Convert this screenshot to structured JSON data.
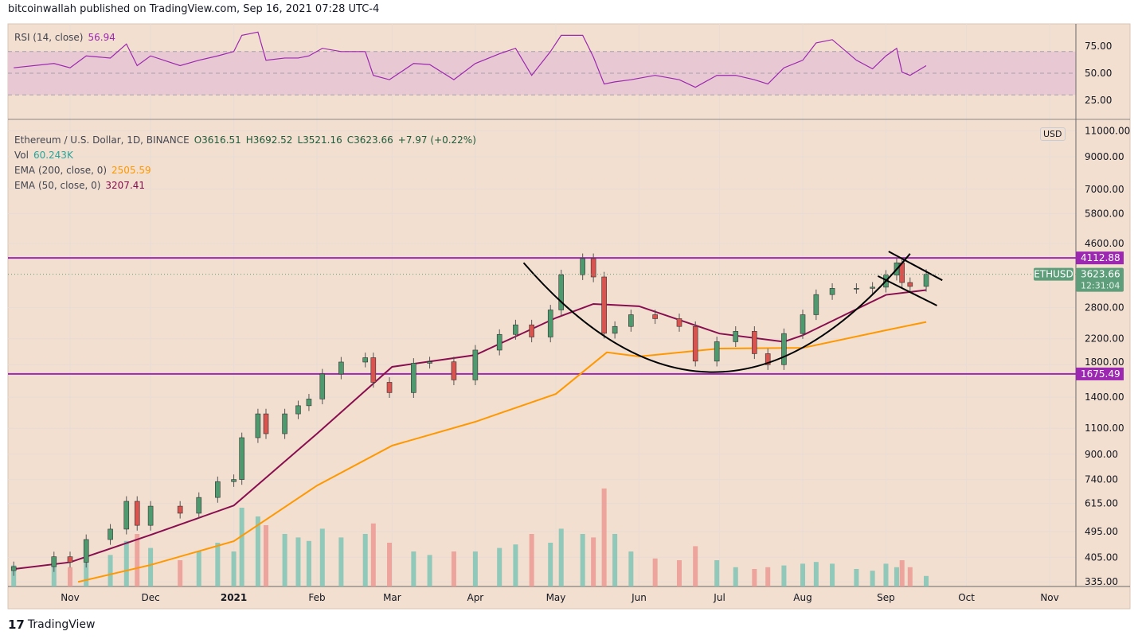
{
  "header": {
    "published": "bitcoinwallah published on TradingView.com, Sep 16, 2021 07:28 UTC-4"
  },
  "rsi_legend": {
    "label": "RSI (14, close)",
    "value": "56.94"
  },
  "legend": {
    "symbol": "Ethereum / U.S. Dollar, 1D, BINANCE",
    "open": "O3616.51",
    "high": "H3692.52",
    "low": "L3521.16",
    "close": "C3623.66",
    "change": "+7.97 (+0.22%)",
    "vol_label": "Vol",
    "vol_value": "60.243K",
    "ema200_label": "EMA (200, close, 0)",
    "ema200_value": "2505.59",
    "ema50_label": "EMA (50, close, 0)",
    "ema50_value": "3207.41"
  },
  "currency": "USD",
  "footer": {
    "brand": "TradingView"
  },
  "colors": {
    "background": "#f2dfcf",
    "up": "#4e9a6e",
    "down": "#d9534f",
    "ema200": "#ff9800",
    "ema50": "#880e4f",
    "hline": "#9c27b0",
    "rsi": "#9c27b0",
    "last_price": "#5f9e7b"
  },
  "chart_data": {
    "type": "candlestick",
    "yscale": "log",
    "ylim": [
      320,
      11500
    ],
    "y_ticks": [
      "11000.00",
      "9000.00",
      "7000.00",
      "5800.00",
      "4600.00",
      "2800.00",
      "2200.00",
      "1800.00",
      "1400.00",
      "1100.00",
      "900.00",
      "740.00",
      "615.00",
      "495.00",
      "405.00",
      "335.00"
    ],
    "x_ticks": [
      {
        "label": "Nov",
        "date": "2020-11-01"
      },
      {
        "label": "Dec",
        "date": "2020-12-01"
      },
      {
        "label": "2021",
        "date": "2021-01-01"
      },
      {
        "label": "Feb",
        "date": "2021-02-01"
      },
      {
        "label": "Mar",
        "date": "2021-03-01"
      },
      {
        "label": "Apr",
        "date": "2021-04-01"
      },
      {
        "label": "May",
        "date": "2021-05-01"
      },
      {
        "label": "Jun",
        "date": "2021-06-01"
      },
      {
        "label": "Jul",
        "date": "2021-07-01"
      },
      {
        "label": "Aug",
        "date": "2021-08-01"
      },
      {
        "label": "Sep",
        "date": "2021-09-01"
      },
      {
        "label": "Oct",
        "date": "2021-10-01"
      },
      {
        "label": "Nov",
        "date": "2021-11-01"
      }
    ],
    "xlim": [
      "2020-10-08",
      "2021-11-10"
    ],
    "series": [
      [
        "2020-10-11",
        377,
        120,
        55
      ],
      [
        "2020-10-26",
        407,
        130,
        59
      ],
      [
        "2020-11-01",
        390,
        110,
        55
      ],
      [
        "2020-11-07",
        465,
        200,
        66
      ],
      [
        "2020-11-16",
        504,
        180,
        64
      ],
      [
        "2020-11-22",
        625,
        260,
        77
      ],
      [
        "2020-11-26",
        519,
        300,
        57
      ],
      [
        "2020-12-01",
        602,
        220,
        66
      ],
      [
        "2020-12-12",
        570,
        150,
        57
      ],
      [
        "2020-12-19",
        644,
        200,
        62
      ],
      [
        "2020-12-26",
        728,
        250,
        66
      ],
      [
        "2021-01-01",
        740,
        200,
        70
      ],
      [
        "2021-01-04",
        1023,
        450,
        85
      ],
      [
        "2021-01-10",
        1230,
        400,
        88
      ],
      [
        "2021-01-13",
        1055,
        350,
        62
      ],
      [
        "2021-01-20",
        1230,
        300,
        64
      ],
      [
        "2021-01-25",
        1310,
        280,
        64
      ],
      [
        "2021-01-29",
        1380,
        260,
        66
      ],
      [
        "2021-02-03",
        1675,
        330,
        73
      ],
      [
        "2021-02-10",
        1837,
        280,
        70
      ],
      [
        "2021-02-19",
        1900,
        300,
        70
      ],
      [
        "2021-02-22",
        1570,
        360,
        48
      ],
      [
        "2021-02-28",
        1450,
        250,
        44
      ],
      [
        "2021-03-09",
        1820,
        200,
        59
      ],
      [
        "2021-03-15",
        1840,
        180,
        58
      ],
      [
        "2021-03-24",
        1600,
        200,
        44
      ],
      [
        "2021-04-01",
        2015,
        200,
        59
      ],
      [
        "2021-04-10",
        2275,
        220,
        68
      ],
      [
        "2021-04-16",
        2450,
        240,
        73
      ],
      [
        "2021-04-22",
        2230,
        300,
        48
      ],
      [
        "2021-04-29",
        2750,
        250,
        70
      ],
      [
        "2021-05-03",
        3610,
        330,
        85
      ],
      [
        "2021-05-11",
        4093,
        300,
        85
      ],
      [
        "2021-05-15",
        3550,
        280,
        65
      ],
      [
        "2021-05-19",
        2295,
        560,
        40
      ],
      [
        "2021-05-23",
        2420,
        300,
        42
      ],
      [
        "2021-05-29",
        2650,
        200,
        44
      ],
      [
        "2021-06-07",
        2570,
        160,
        48
      ],
      [
        "2021-06-16",
        2420,
        150,
        44
      ],
      [
        "2021-06-22",
        1850,
        230,
        37
      ],
      [
        "2021-06-30",
        2150,
        150,
        48
      ],
      [
        "2021-07-07",
        2330,
        110,
        48
      ],
      [
        "2021-07-14",
        1960,
        100,
        44
      ],
      [
        "2021-07-19",
        1800,
        110,
        40
      ],
      [
        "2021-07-25",
        2290,
        120,
        55
      ],
      [
        "2021-08-01",
        2650,
        130,
        62
      ],
      [
        "2021-08-06",
        3097,
        140,
        78
      ],
      [
        "2021-08-12",
        3250,
        130,
        81
      ],
      [
        "2021-08-21",
        3250,
        100,
        62
      ],
      [
        "2021-08-27",
        3280,
        90,
        54
      ],
      [
        "2021-09-01",
        3600,
        130,
        66
      ],
      [
        "2021-09-05",
        3960,
        110,
        73
      ],
      [
        "2021-09-07",
        3400,
        150,
        51
      ],
      [
        "2021-09-10",
        3300,
        110,
        48
      ],
      [
        "2021-09-16",
        3624,
        60,
        57
      ]
    ],
    "series_fields": [
      "date",
      "close",
      "volume_k",
      "rsi"
    ],
    "ema200": [
      [
        "2020-11-04",
        335
      ],
      [
        "2020-12-01",
        382
      ],
      [
        "2021-01-01",
        459
      ],
      [
        "2021-02-01",
        706
      ],
      [
        "2021-03-01",
        962
      ],
      [
        "2021-04-01",
        1157
      ],
      [
        "2021-05-01",
        1435
      ],
      [
        "2021-05-20",
        1980
      ],
      [
        "2021-06-01",
        1918
      ],
      [
        "2021-07-01",
        2040
      ],
      [
        "2021-08-01",
        2050
      ],
      [
        "2021-09-01",
        2350
      ],
      [
        "2021-09-16",
        2505.59
      ]
    ],
    "ema50": [
      [
        "2020-10-11",
        370
      ],
      [
        "2020-11-01",
        390
      ],
      [
        "2020-12-01",
        482
      ],
      [
        "2021-01-01",
        605
      ],
      [
        "2021-02-01",
        1055
      ],
      [
        "2021-03-01",
        1770
      ],
      [
        "2021-04-01",
        1940
      ],
      [
        "2021-05-01",
        2585
      ],
      [
        "2021-05-15",
        2880
      ],
      [
        "2021-06-01",
        2830
      ],
      [
        "2021-07-01",
        2290
      ],
      [
        "2021-07-25",
        2150
      ],
      [
        "2021-08-01",
        2260
      ],
      [
        "2021-09-01",
        3090
      ],
      [
        "2021-09-16",
        3207.41
      ]
    ],
    "hlines": [
      {
        "price": 4112.88,
        "label": "4112.88"
      },
      {
        "price": 1675.49,
        "label": "1675.49"
      }
    ],
    "last_price": {
      "price": 3623.66,
      "symbol": "ETHUSD",
      "label": "3623.66",
      "countdown": "12:31:04"
    },
    "drawings": {
      "cup_arc": [
        [
          "2021-04-19",
          3960
        ],
        [
          "2021-06-30",
          1700
        ],
        [
          "2021-09-10",
          4250
        ]
      ],
      "trendlines": [
        [
          [
            "2021-09-02",
            4325
          ],
          [
            "2021-09-22",
            3460
          ]
        ],
        [
          [
            "2021-08-29",
            3575
          ],
          [
            "2021-09-20",
            2845
          ]
        ]
      ]
    },
    "rsi": {
      "ticks": [
        "75.00",
        "50.00",
        "25.00"
      ],
      "band": [
        30,
        70
      ],
      "ylim": [
        18,
        95
      ]
    }
  }
}
